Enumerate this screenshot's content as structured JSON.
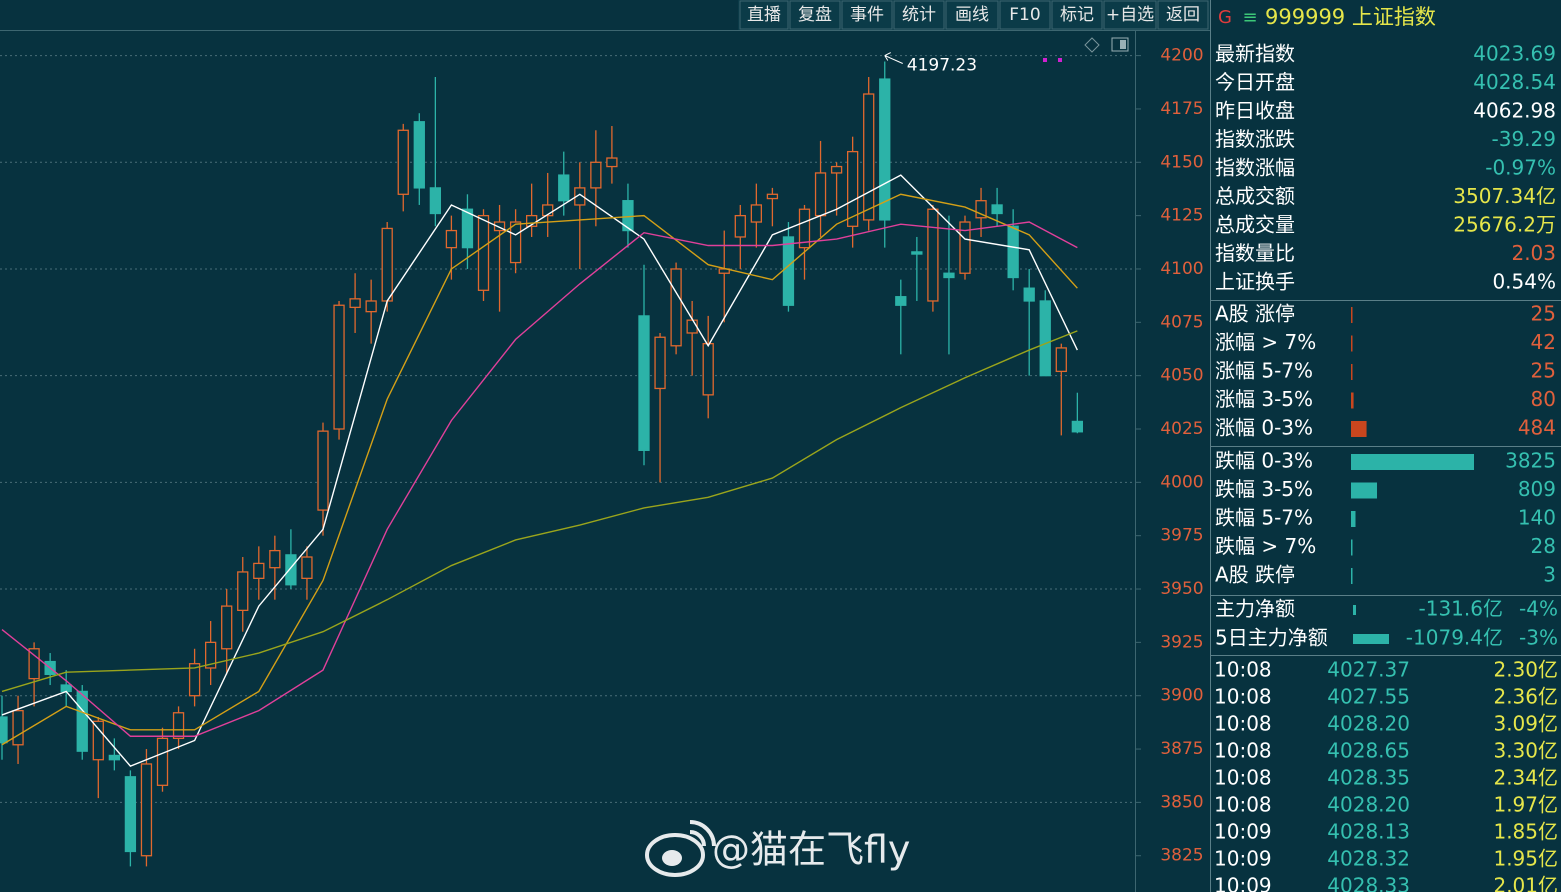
{
  "toolbar": [
    "直播",
    "复盘",
    "事件",
    "统计",
    "画线",
    "F10",
    "标记",
    "+自选",
    "返回"
  ],
  "header": {
    "badge": "G",
    "menu": "≡",
    "title": "999999 上证指数"
  },
  "chart_data": {
    "type": "candlestick",
    "ylim": [
      3808,
      4212
    ],
    "yticks": [
      3825,
      3850,
      3875,
      3900,
      3925,
      3950,
      3975,
      4000,
      4025,
      4050,
      4075,
      4100,
      4125,
      4150,
      4175,
      4200
    ],
    "grid": true,
    "up_color": "#e0682e",
    "down_color": "#2cb3a8",
    "candles": {
      "open": [
        3890,
        3877,
        3908,
        3916,
        3905,
        3902,
        3870,
        3872,
        3862,
        3825,
        3858,
        3880,
        3900,
        3913,
        3922,
        3940,
        3955,
        3960,
        3966,
        3955,
        3987,
        4025,
        4082,
        4080,
        4085,
        4135,
        4169,
        4138,
        4110,
        4128,
        4090,
        4118,
        4103,
        4120,
        4125,
        4144,
        4130,
        4138,
        4148,
        4132,
        4078,
        4044,
        4064,
        4070,
        4041,
        4098,
        4115,
        4122,
        4133,
        4115,
        4110,
        4125,
        4145,
        4120,
        4123,
        4189,
        4087,
        4108,
        4085,
        4098,
        4098,
        4124,
        4130,
        4120,
        4091,
        4085,
        4052,
        4028.54
      ],
      "high": [
        3900,
        3900,
        3925,
        3920,
        3912,
        3905,
        3890,
        3880,
        3865,
        3875,
        3885,
        3895,
        3922,
        3935,
        3950,
        3965,
        3970,
        3975,
        3978,
        3970,
        4028,
        4085,
        4098,
        4095,
        4122,
        4168,
        4173,
        4190,
        4125,
        4135,
        4128,
        4130,
        4128,
        4140,
        4145,
        4155,
        4150,
        4165,
        4167,
        4140,
        4102,
        4070,
        4103,
        4085,
        4078,
        4118,
        4130,
        4140,
        4138,
        4122,
        4130,
        4160,
        4150,
        4162,
        4190,
        4197.23,
        4095,
        4115,
        4130,
        4125,
        4125,
        4138,
        4138,
        4128,
        4100,
        4090,
        4065,
        4042
      ],
      "low": [
        3870,
        3868,
        3895,
        3905,
        3895,
        3870,
        3852,
        3865,
        3820,
        3820,
        3855,
        3875,
        3895,
        3905,
        3910,
        3930,
        3945,
        3945,
        3950,
        3945,
        3975,
        4020,
        4070,
        4065,
        4080,
        4127,
        4130,
        4120,
        4095,
        4100,
        4085,
        4080,
        4098,
        4115,
        4115,
        4125,
        4100,
        4120,
        4140,
        4110,
        4008,
        4000,
        4060,
        4050,
        4030,
        4075,
        4100,
        4110,
        4120,
        4080,
        4095,
        4115,
        4125,
        4110,
        4118,
        4110,
        4060,
        4085,
        4080,
        4060,
        4095,
        4115,
        4120,
        4090,
        4050,
        4050,
        4022,
        4023
      ],
      "close": [
        3878,
        3893,
        3922,
        3910,
        3902,
        3874,
        3888,
        3870,
        3827,
        3868,
        3880,
        3892,
        3915,
        3925,
        3942,
        3958,
        3962,
        3968,
        3952,
        3965,
        4024,
        4083,
        4086,
        4085,
        4119,
        4165,
        4138,
        4126,
        4118,
        4110,
        4125,
        4122,
        4122,
        4125,
        4130,
        4132,
        4138,
        4150,
        4152,
        4118,
        4015,
        4068,
        4100,
        4076,
        4065,
        4100,
        4125,
        4130,
        4135,
        4083,
        4128,
        4145,
        4148,
        4155,
        4182,
        4123,
        4083,
        4107,
        4128,
        4096,
        4122,
        4132,
        4126,
        4096,
        4085,
        4050,
        4063,
        4023.69
      ]
    },
    "series": [
      {
        "color": "#ffffff",
        "x": [
          0,
          4,
          8,
          12,
          16,
          20,
          24,
          28,
          32,
          36,
          40,
          44,
          48,
          52,
          56,
          60,
          64,
          67
        ],
        "values": [
          3891,
          3902,
          3867,
          3879,
          3942,
          3978,
          4085,
          4130,
          4116,
          4135,
          4114,
          4064,
          4116,
          4128,
          4144,
          4114,
          4109,
          4062
        ]
      },
      {
        "color": "#d4a017",
        "x": [
          0,
          4,
          8,
          12,
          16,
          20,
          24,
          28,
          32,
          36,
          40,
          44,
          48,
          52,
          56,
          60,
          64,
          67
        ],
        "values": [
          3877,
          3895,
          3884,
          3884,
          3902,
          3954,
          4039,
          4100,
          4121,
          4123,
          4125,
          4102,
          4095,
          4121,
          4135,
          4129,
          4116,
          4091
        ]
      },
      {
        "color": "#e0409a",
        "x": [
          0,
          4,
          8,
          12,
          16,
          20,
          24,
          28,
          32,
          36,
          40,
          44,
          48,
          52,
          56,
          60,
          64,
          67
        ],
        "values": [
          3931,
          3907,
          3881,
          3881,
          3893,
          3912,
          3978,
          4029,
          4067,
          4093,
          4117,
          4111,
          4111,
          4114,
          4121,
          4118,
          4122,
          4110
        ]
      },
      {
        "color": "#9aa51c",
        "x": [
          0,
          4,
          8,
          12,
          16,
          20,
          24,
          28,
          32,
          36,
          40,
          44,
          48,
          52,
          56,
          60,
          64,
          67
        ],
        "values": [
          3902,
          3911,
          3912,
          3913,
          3920,
          3930,
          3945,
          3961,
          3973,
          3980,
          3988,
          3993,
          4002,
          4020,
          4035,
          4049,
          4062,
          4071
        ]
      }
    ]
  },
  "stats": [
    {
      "label": "最新指数",
      "value": "4023.69",
      "color": "#35c0b0"
    },
    {
      "label": "今日开盘",
      "value": "4028.54",
      "color": "#35c0b0"
    },
    {
      "label": "昨日收盘",
      "value": "4062.98",
      "color": "#ffffff"
    },
    {
      "label": "指数涨跌",
      "value": "-39.29",
      "color": "#35c0b0"
    },
    {
      "label": "指数涨幅",
      "value": "-0.97%",
      "color": "#35c0b0"
    },
    {
      "label": "总成交额",
      "value": "3507.34亿",
      "color": "#e6e64a"
    },
    {
      "label": "总成交量",
      "value": "25676.2万",
      "color": "#e6e64a"
    },
    {
      "label": "指数量比",
      "value": "2.03",
      "color": "#e0603c"
    },
    {
      "label": "上证换手",
      "value": "0.54%",
      "color": "#ffffff"
    }
  ],
  "breadth": {
    "up": [
      {
        "label": "A股 涨停",
        "value": 25
      },
      {
        "label": "涨幅 > 7%",
        "value": 42
      },
      {
        "label": "涨幅 5-7%",
        "value": 25
      },
      {
        "label": "涨幅 3-5%",
        "value": 80
      },
      {
        "label": "涨幅 0-3%",
        "value": 484
      }
    ],
    "down": [
      {
        "label": "跌幅 0-3%",
        "value": 3825
      },
      {
        "label": "跌幅 3-5%",
        "value": 809
      },
      {
        "label": "跌幅 5-7%",
        "value": 140
      },
      {
        "label": "跌幅 > 7%",
        "value": 28
      },
      {
        "label": "A股 跌停",
        "value": 3
      }
    ]
  },
  "flows": [
    {
      "label": "主力净额",
      "amount": "-131.6亿",
      "pct": "-4%"
    },
    {
      "label": "5日主力净额",
      "amount": "-1079.4亿",
      "pct": "-3%"
    }
  ],
  "ticks": [
    [
      "10:08",
      "4027.37",
      "2.30亿"
    ],
    [
      "10:08",
      "4027.55",
      "2.36亿"
    ],
    [
      "10:08",
      "4028.20",
      "3.09亿"
    ],
    [
      "10:08",
      "4028.65",
      "3.30亿"
    ],
    [
      "10:08",
      "4028.35",
      "2.34亿"
    ],
    [
      "10:08",
      "4028.20",
      "1.97亿"
    ],
    [
      "10:09",
      "4028.13",
      "1.85亿"
    ],
    [
      "10:09",
      "4028.32",
      "1.95亿"
    ],
    [
      "10:09",
      "4028.33",
      "2.01亿"
    ]
  ],
  "watermark": "@猫在飞fly"
}
